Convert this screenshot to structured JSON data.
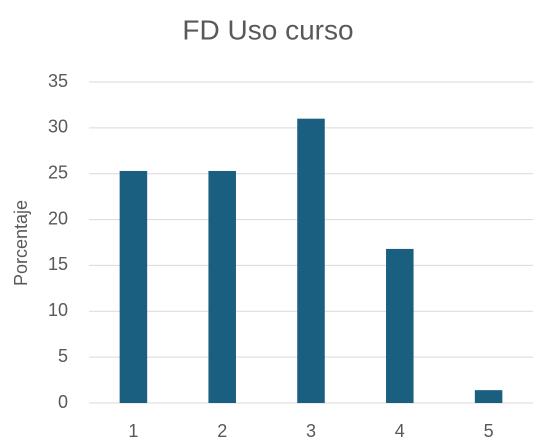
{
  "chart_data": {
    "type": "bar",
    "title": "FD Uso curso",
    "y_label": "Porcentaje",
    "categories": [
      "1",
      "2",
      "3",
      "4",
      "5"
    ],
    "values": [
      25.3,
      25.3,
      31.0,
      16.8,
      1.4
    ],
    "color": "#1a5e80",
    "ylim": [
      0,
      35
    ],
    "yticks": [
      0,
      5,
      10,
      15,
      20,
      25,
      30,
      35
    ],
    "grid": true
  }
}
